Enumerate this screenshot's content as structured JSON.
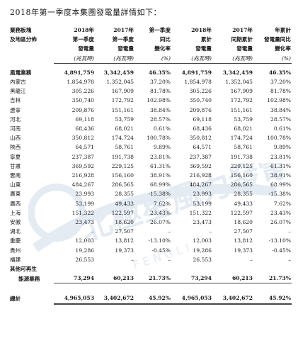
{
  "intro": "2018年第一季度本集團發電量詳情如下：",
  "watermark": {
    "brand": "北極星風力發電網",
    "latin": "F E N G L I"
  },
  "header": {
    "col0": [
      "業務板塊",
      "及地區分佈"
    ],
    "cols": [
      [
        "2018年",
        "第一季度",
        "發電量"
      ],
      [
        "2017年",
        "第一季度",
        "發電量"
      ],
      [
        "第一季度",
        "同比",
        "變化率"
      ],
      [
        "2018年",
        "累計",
        "發電量"
      ],
      [
        "2017年",
        "同期累計",
        "發電量"
      ],
      [
        "年累計",
        "發電量同比",
        "變化率"
      ]
    ],
    "units": [
      "(兆瓦時)",
      "(兆瓦時)",
      "(%)",
      "(兆瓦時)",
      "(兆瓦時)",
      "(%)"
    ]
  },
  "rows": [
    {
      "label": "風電業務",
      "bold": true,
      "v": [
        "4,891,759",
        "3,342,459",
        "46.35%",
        "4,891,759",
        "3,342,459",
        "46.35%"
      ]
    },
    {
      "label": "內蒙古",
      "v": [
        "1,854,978",
        "1,352,045",
        "37.20%",
        "1,854,978",
        "1,352,045",
        "37.20%"
      ]
    },
    {
      "label": "黑龍江",
      "v": [
        "305,226",
        "167,909",
        "81.78%",
        "305,226",
        "167,909",
        "81.78%"
      ]
    },
    {
      "label": "吉林",
      "v": [
        "350,740",
        "172,792",
        "102.98%",
        "350,740",
        "172,792",
        "102.98%"
      ]
    },
    {
      "label": "遼寧",
      "v": [
        "209,876",
        "151,161",
        "38.84%",
        "209,876",
        "151,161",
        "38.84%"
      ]
    },
    {
      "label": "河北",
      "v": [
        "69,118",
        "53,759",
        "28.57%",
        "69,118",
        "53,759",
        "28.57%"
      ]
    },
    {
      "label": "河南",
      "v": [
        "68,436",
        "68,021",
        "0.61%",
        "68,436",
        "68,021",
        "0.61%"
      ]
    },
    {
      "label": "山西",
      "v": [
        "350,812",
        "174,724",
        "100.78%",
        "350,812",
        "174,724",
        "100.78%"
      ]
    },
    {
      "label": "陝西",
      "v": [
        "64,571",
        "58,761",
        "9.89%",
        "64,571",
        "58,761",
        "9.89%"
      ]
    },
    {
      "label": "寧夏",
      "v": [
        "237,387",
        "191,738",
        "23.81%",
        "237,387",
        "191,738",
        "23.81%"
      ]
    },
    {
      "label": "甘肅",
      "v": [
        "369,592",
        "229,125",
        "61.31%",
        "369,592",
        "229,125",
        "61.31%"
      ]
    },
    {
      "label": "雲南",
      "v": [
        "216,928",
        "156,160",
        "38.91%",
        "216,928",
        "156,160",
        "38.91%"
      ]
    },
    {
      "label": "山東",
      "v": [
        "484,267",
        "286,565",
        "68.99%",
        "484,267",
        "286,565",
        "68.99%"
      ]
    },
    {
      "label": "廣東",
      "v": [
        "23,993",
        "28,355",
        "-15.38%",
        "23,993",
        "28,355",
        "-15.38%"
      ]
    },
    {
      "label": "廣西",
      "v": [
        "53,199",
        "49,433",
        "7.62%",
        "53,199",
        "49,433",
        "7.62%"
      ]
    },
    {
      "label": "上海",
      "v": [
        "151,322",
        "122,597",
        "23.43%",
        "151,322",
        "122,597",
        "23.43%"
      ]
    },
    {
      "label": "安徽",
      "v": [
        "23,473",
        "18,620",
        "26.07%",
        "23,473",
        "18,620",
        "26.07%"
      ]
    },
    {
      "label": "湖北",
      "v": [
        "–",
        "27,507",
        "–",
        "–",
        "27,507",
        "–"
      ]
    },
    {
      "label": "重慶",
      "v": [
        "12,003",
        "13,812",
        "-13.10%",
        "12,003",
        "13,812",
        "-13.10%"
      ]
    },
    {
      "label": "貴州",
      "v": [
        "19,286",
        "19,373",
        "-0.45%",
        "19,286",
        "19,373",
        "-0.45%"
      ]
    },
    {
      "label": "福建",
      "v": [
        "26,553",
        "–",
        "–",
        "26,553",
        "–",
        "–"
      ]
    }
  ],
  "other": {
    "label1": "其他可再生",
    "label2": "能源業務",
    "v": [
      "73,294",
      "60,213",
      "21.73%",
      "73,294",
      "60,213",
      "21.73%"
    ]
  },
  "total": {
    "label": "總計",
    "v": [
      "4,965,053",
      "3,402,672",
      "45.92%",
      "4,965,053",
      "3,402,672",
      "45.92%"
    ]
  }
}
